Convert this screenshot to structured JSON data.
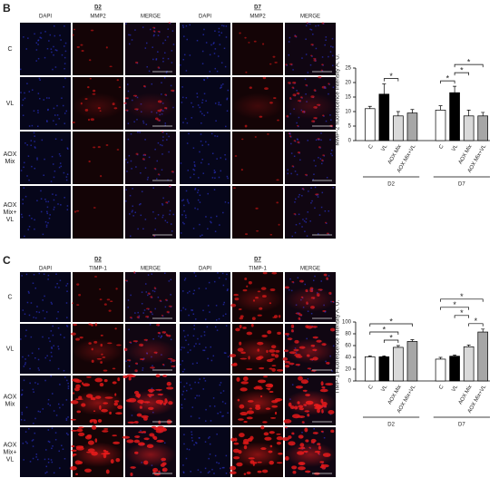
{
  "panels": [
    {
      "label": "B",
      "groups": [
        "D2",
        "D7"
      ],
      "columns": [
        "DAPI",
        "MMP2",
        "MERGE"
      ],
      "rows": [
        [
          "C"
        ],
        [
          "VL"
        ],
        [
          "AOX",
          "Mix"
        ],
        [
          "AOX",
          "Mix+",
          "VL"
        ]
      ]
    },
    {
      "label": "C",
      "groups": [
        "D2",
        "D7"
      ],
      "columns": [
        "DAPI",
        "TIMP-1",
        "MERGE"
      ],
      "rows": [
        [
          "C"
        ],
        [
          "VL"
        ],
        [
          "AOX",
          "Mix"
        ],
        [
          "AOX",
          "Mix+",
          "VL"
        ]
      ]
    }
  ],
  "chart_data": [
    {
      "type": "bar",
      "y_label": "MMP-2 fluorescence intensity A. U.",
      "categories": [
        "C",
        "VL",
        "AOX Mix",
        "AOX Mix+VL",
        "C",
        "VL",
        "AOX Mix",
        "AOX Mix+VL"
      ],
      "group_labels": [
        "D2",
        "D7"
      ],
      "values": [
        11,
        16,
        8.5,
        9.5,
        10.5,
        16.5,
        8.5,
        8.5
      ],
      "errors": [
        0.8,
        3.5,
        1.5,
        1.2,
        1.5,
        2.2,
        2,
        1.2
      ],
      "colors": [
        "#ffffff",
        "#000000",
        "#d9d9d9",
        "#a6a6a6",
        "#ffffff",
        "#000000",
        "#d9d9d9",
        "#a6a6a6"
      ],
      "ylim": [
        0,
        25
      ],
      "yticks": [
        0,
        5,
        10,
        15,
        20,
        25
      ],
      "annotations": [
        {
          "text": "*",
          "from": 1,
          "to": 2
        },
        {
          "text": "*",
          "from": 4,
          "to": 5
        },
        {
          "text": "*",
          "from": 5,
          "to": 6
        },
        {
          "text": "*",
          "from": 5,
          "to": 7
        }
      ]
    },
    {
      "type": "bar",
      "y_label": "TIMP-1 Fluorescence intensity A. U.",
      "categories": [
        "C",
        "VL",
        "AOX Mix",
        "AOX Mix+VL",
        "C",
        "VL",
        "AOX Mix",
        "AOX Mix+VL"
      ],
      "group_labels": [
        "D2",
        "D7"
      ],
      "values": [
        41,
        41,
        57,
        67,
        37,
        42,
        58,
        83
      ],
      "errors": [
        1.5,
        1.5,
        3,
        3,
        3,
        2,
        3,
        5
      ],
      "colors": [
        "#ffffff",
        "#000000",
        "#d9d9d9",
        "#a6a6a6",
        "#ffffff",
        "#000000",
        "#d9d9d9",
        "#a6a6a6"
      ],
      "ylim": [
        0,
        100
      ],
      "yticks": [
        0,
        20,
        40,
        60,
        80,
        100
      ],
      "annotations": [
        {
          "text": "*",
          "from": 1,
          "to": 2
        },
        {
          "text": "*",
          "from": 0,
          "to": 2
        },
        {
          "text": "*",
          "from": 0,
          "to": 3
        },
        {
          "text": "*",
          "from": 6,
          "to": 7
        },
        {
          "text": "*",
          "from": 5,
          "to": 6
        },
        {
          "text": "*",
          "from": 4,
          "to": 6
        },
        {
          "text": "*",
          "from": 4,
          "to": 7
        }
      ]
    }
  ]
}
